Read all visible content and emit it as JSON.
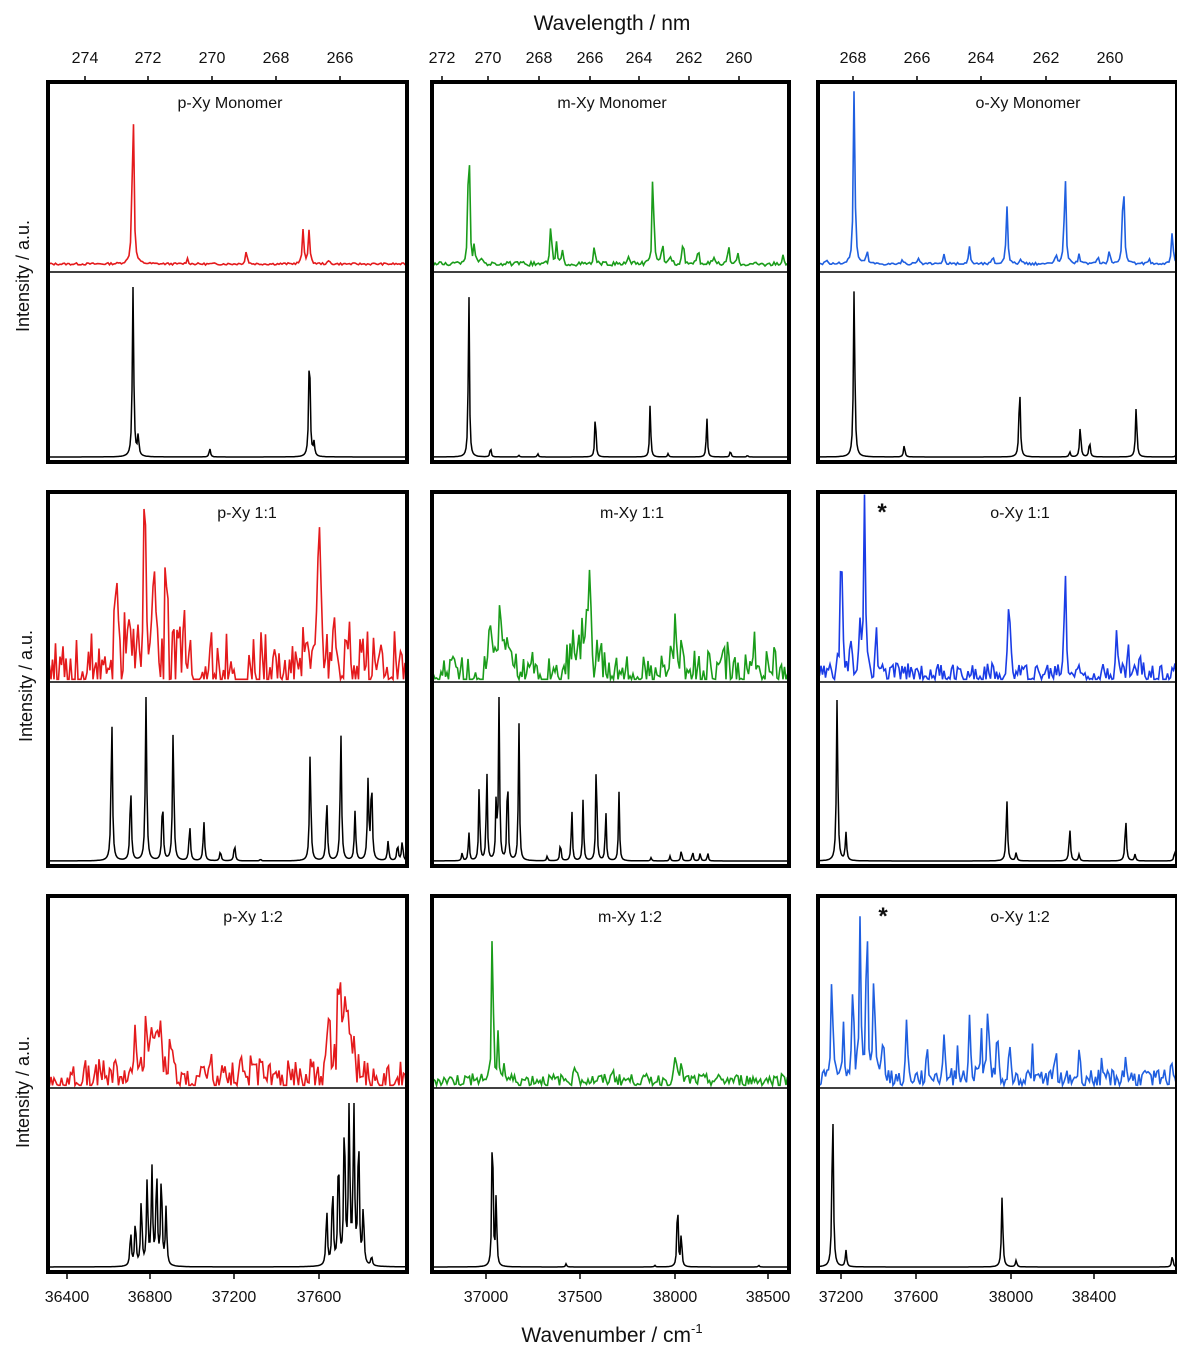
{
  "figure": {
    "top_axis_label": "Wavelength / nm",
    "bottom_axis_label_main": "Wavenumber / cm",
    "bottom_axis_label_sup": "-1",
    "y_axis_label": "Intensity / a.u.",
    "top_ticks": [
      [
        "274",
        "272",
        "270",
        "268",
        "266"
      ],
      [
        "272",
        "270",
        "268",
        "266",
        "264",
        "262",
        "260"
      ],
      [
        "268",
        "266",
        "264",
        "262",
        "260"
      ]
    ],
    "bottom_ticks": [
      [
        "36400",
        "36800",
        "37200",
        "37600"
      ],
      [
        "37000",
        "37500",
        "38000",
        "38500"
      ],
      [
        "37200",
        "37600",
        "38000",
        "38400"
      ]
    ],
    "marker": "*"
  },
  "chart_data": [
    {
      "type": "line",
      "row": 0,
      "col": 0,
      "title": "p-Xy Monomer",
      "xlim": [
        36350,
        37870
      ],
      "experiment": {
        "color": "#e41a1c",
        "peaks": [
          [
            36710,
            1.0
          ],
          [
            36940,
            0.03
          ],
          [
            37190,
            0.08
          ],
          [
            37430,
            0.19
          ],
          [
            37455,
            0.19
          ],
          [
            37540,
            0.02
          ]
        ],
        "noise": 0.006
      },
      "simulation": {
        "color": "#000000",
        "peaks": [
          [
            36710,
            1.0
          ],
          [
            36732,
            0.12
          ],
          [
            37035,
            0.05
          ],
          [
            37457,
            0.66
          ],
          [
            37476,
            0.08
          ]
        ]
      }
    },
    {
      "type": "line",
      "row": 0,
      "col": 1,
      "title": "m-Xy Monomer",
      "xlim": [
        36740,
        38630
      ],
      "experiment": {
        "color": "#1a9c1a",
        "peaks": [
          [
            36935,
            1.0
          ],
          [
            36965,
            0.12
          ],
          [
            37005,
            0.05
          ],
          [
            37370,
            0.28
          ],
          [
            37400,
            0.12
          ],
          [
            37430,
            0.08
          ],
          [
            37600,
            0.12
          ],
          [
            37780,
            0.05
          ],
          [
            37910,
            0.66
          ],
          [
            37960,
            0.15
          ],
          [
            38000,
            0.07
          ],
          [
            38070,
            0.18
          ],
          [
            38150,
            0.1
          ],
          [
            38230,
            0.06
          ],
          [
            38310,
            0.12
          ],
          [
            38360,
            0.06
          ],
          [
            38600,
            0.05
          ]
        ],
        "noise": 0.012
      },
      "simulation": {
        "color": "#000000",
        "peaks": [
          [
            36935,
            1.0
          ],
          [
            37050,
            0.06
          ],
          [
            37200,
            0.01
          ],
          [
            37300,
            0.02
          ],
          [
            37605,
            0.28
          ],
          [
            37895,
            0.32
          ],
          [
            37990,
            0.02
          ],
          [
            38195,
            0.24
          ],
          [
            38320,
            0.04
          ],
          [
            38410,
            0.01
          ]
        ]
      }
    },
    {
      "type": "line",
      "row": 0,
      "col": 2,
      "title": "o-Xy Monomer",
      "xlim": [
        37180,
        38720
      ],
      "experiment": {
        "color": "#1f5fe0",
        "peaks": [
          [
            37215,
            0.03
          ],
          [
            37335,
            1.0
          ],
          [
            37390,
            0.08
          ],
          [
            37540,
            0.02
          ],
          [
            37610,
            0.03
          ],
          [
            37720,
            0.05
          ],
          [
            37830,
            0.1
          ],
          [
            37930,
            0.04
          ],
          [
            37990,
            0.34
          ],
          [
            38050,
            0.03
          ],
          [
            38200,
            0.06
          ],
          [
            38240,
            0.56
          ],
          [
            38300,
            0.06
          ],
          [
            38380,
            0.05
          ],
          [
            38430,
            0.08
          ],
          [
            38490,
            0.56
          ],
          [
            38600,
            0.04
          ],
          [
            38700,
            0.2
          ]
        ],
        "noise": 0.007
      },
      "simulation": {
        "color": "#000000",
        "peaks": [
          [
            37335,
            1.0
          ],
          [
            37550,
            0.07
          ],
          [
            38045,
            0.42
          ],
          [
            38260,
            0.03
          ],
          [
            38305,
            0.18
          ],
          [
            38345,
            0.09
          ],
          [
            38545,
            0.3
          ],
          [
            38715,
            0.01
          ]
        ]
      }
    },
    {
      "type": "line",
      "row": 1,
      "col": 0,
      "title": "p-Xy 1:1",
      "xlim": [
        36350,
        37870
      ],
      "experiment": {
        "color": "#e41a1c",
        "peaks": [
          [
            36640,
            0.45
          ],
          [
            36700,
            0.45
          ],
          [
            36760,
            0.55
          ],
          [
            36800,
            0.55
          ],
          [
            36850,
            0.45
          ],
          [
            36920,
            0.2
          ],
          [
            37440,
            0.35
          ],
          [
            37500,
            0.42
          ],
          [
            37560,
            0.45
          ],
          [
            37620,
            0.3
          ],
          [
            37680,
            0.15
          ]
        ],
        "broad": true,
        "noise": 0.06
      },
      "simulation": {
        "color": "#000000",
        "peaks": [
          [
            36620,
            0.88
          ],
          [
            36700,
            0.46
          ],
          [
            36765,
            1.0
          ],
          [
            36835,
            0.38
          ],
          [
            36880,
            0.8
          ],
          [
            36950,
            0.22
          ],
          [
            37010,
            0.24
          ],
          [
            37080,
            0.06
          ],
          [
            37140,
            0.1
          ],
          [
            37250,
            0.01
          ],
          [
            37460,
            0.66
          ],
          [
            37530,
            0.38
          ],
          [
            37590,
            0.78
          ],
          [
            37650,
            0.3
          ],
          [
            37705,
            0.48
          ],
          [
            37720,
            0.5
          ],
          [
            37790,
            0.12
          ],
          [
            37830,
            0.1
          ],
          [
            37850,
            0.12
          ]
        ]
      }
    },
    {
      "type": "line",
      "row": 1,
      "col": 1,
      "title": "m-Xy 1:1",
      "xlim": [
        36740,
        38630
      ],
      "experiment": {
        "color": "#1a9c1a",
        "peaks": [
          [
            37050,
            0.7
          ],
          [
            37100,
            0.6
          ],
          [
            37150,
            0.35
          ],
          [
            37480,
            0.3
          ],
          [
            37530,
            0.35
          ],
          [
            37570,
            0.85
          ],
          [
            37620,
            0.15
          ],
          [
            37980,
            0.2
          ],
          [
            38020,
            0.45
          ],
          [
            38060,
            0.18
          ],
          [
            38200,
            0.12
          ],
          [
            38300,
            0.1
          ],
          [
            38450,
            0.14
          ],
          [
            38550,
            0.1
          ]
        ],
        "broad": true,
        "noise": 0.05
      },
      "simulation": {
        "color": "#000000",
        "peaks": [
          [
            36900,
            0.05
          ],
          [
            36935,
            0.18
          ],
          [
            36990,
            0.48
          ],
          [
            37030,
            0.58
          ],
          [
            37080,
            0.38
          ],
          [
            37095,
            1.0
          ],
          [
            37140,
            0.6
          ],
          [
            37200,
            0.86
          ],
          [
            37350,
            0.03
          ],
          [
            37420,
            0.12
          ],
          [
            37480,
            0.33
          ],
          [
            37540,
            0.38
          ],
          [
            37610,
            0.66
          ],
          [
            37660,
            0.32
          ],
          [
            37730,
            0.42
          ],
          [
            37900,
            0.02
          ],
          [
            38000,
            0.03
          ],
          [
            38060,
            0.07
          ],
          [
            38120,
            0.06
          ],
          [
            38160,
            0.05
          ],
          [
            38200,
            0.05
          ]
        ]
      }
    },
    {
      "type": "line",
      "row": 1,
      "col": 2,
      "title": "o-Xy 1:1",
      "xlim": [
        37180,
        38720
      ],
      "experiment": {
        "color": "#1a3ce6",
        "peaks": [
          [
            37280,
            0.75
          ],
          [
            37320,
            0.15
          ],
          [
            37360,
            0.25
          ],
          [
            37380,
            0.82
          ],
          [
            37430,
            0.25
          ],
          [
            38000,
            0.52
          ],
          [
            38240,
            0.55
          ],
          [
            38460,
            0.2
          ],
          [
            38510,
            0.12
          ],
          [
            38560,
            0.08
          ]
        ],
        "noise": 0.05
      },
      "simulation": {
        "color": "#000000",
        "peaks": [
          [
            37262,
            1.0
          ],
          [
            37300,
            0.17
          ],
          [
            37990,
            0.38
          ],
          [
            38030,
            0.05
          ],
          [
            38260,
            0.2
          ],
          [
            38300,
            0.04
          ],
          [
            38500,
            0.26
          ],
          [
            38540,
            0.04
          ],
          [
            38710,
            0.06
          ]
        ]
      }
    },
    {
      "type": "line",
      "row": 2,
      "col": 0,
      "title": "p-Xy 1:2",
      "xlim": [
        36350,
        37870
      ],
      "experiment": {
        "color": "#e41a1c",
        "peaks": [
          [
            36720,
            0.38
          ],
          [
            36760,
            0.52
          ],
          [
            36790,
            0.58
          ],
          [
            36820,
            0.5
          ],
          [
            36870,
            0.2
          ],
          [
            37540,
            0.35
          ],
          [
            37580,
            0.52
          ],
          [
            37600,
            1.0
          ],
          [
            37630,
            0.45
          ],
          [
            37680,
            0.18
          ]
        ],
        "broad": true,
        "noise": 0.06
      },
      "simulation": {
        "color": "#000000",
        "peaks": [
          [
            36700,
            0.18
          ],
          [
            36720,
            0.24
          ],
          [
            36745,
            0.35
          ],
          [
            36770,
            0.45
          ],
          [
            36790,
            0.5
          ],
          [
            36810,
            0.5
          ],
          [
            36830,
            0.48
          ],
          [
            36850,
            0.3
          ],
          [
            37530,
            0.3
          ],
          [
            37555,
            0.42
          ],
          [
            37580,
            0.6
          ],
          [
            37605,
            0.78
          ],
          [
            37625,
            0.85
          ],
          [
            37645,
            0.85
          ],
          [
            37665,
            0.7
          ],
          [
            37685,
            0.3
          ],
          [
            37720,
            0.05
          ]
        ]
      }
    },
    {
      "type": "line",
      "row": 2,
      "col": 1,
      "title": "m-Xy 1:2",
      "xlim": [
        36740,
        38630
      ],
      "experiment": {
        "color": "#1a9c1a",
        "peaks": [
          [
            37060,
            1.0
          ],
          [
            37090,
            0.28
          ],
          [
            37120,
            0.1
          ],
          [
            37500,
            0.1
          ],
          [
            37700,
            0.08
          ],
          [
            38030,
            0.25
          ],
          [
            38060,
            0.08
          ]
        ],
        "noise": 0.035
      },
      "simulation": {
        "color": "#000000",
        "peaks": [
          [
            37060,
            1.0
          ],
          [
            37080,
            0.45
          ],
          [
            37450,
            0.02
          ],
          [
            37920,
            0.01
          ],
          [
            38040,
            0.45
          ],
          [
            38060,
            0.22
          ],
          [
            38470,
            0.01
          ]
        ]
      }
    },
    {
      "type": "line",
      "row": 2,
      "col": 2,
      "title": "o-Xy 1:2",
      "xlim": [
        37180,
        38720
      ],
      "experiment": {
        "color": "#1f5fe0",
        "peaks": [
          [
            37240,
            0.55
          ],
          [
            37290,
            0.3
          ],
          [
            37330,
            0.5
          ],
          [
            37360,
            0.75
          ],
          [
            37390,
            0.9
          ],
          [
            37420,
            0.6
          ],
          [
            37460,
            0.3
          ],
          [
            37560,
            0.3
          ],
          [
            37650,
            0.2
          ],
          [
            37720,
            0.25
          ],
          [
            37780,
            0.18
          ],
          [
            37830,
            0.35
          ],
          [
            37880,
            0.28
          ],
          [
            37910,
            0.45
          ],
          [
            37950,
            0.3
          ],
          [
            38000,
            0.22
          ],
          [
            38100,
            0.15
          ],
          [
            38200,
            0.15
          ],
          [
            38300,
            0.15
          ],
          [
            38400,
            0.12
          ],
          [
            38500,
            0.12
          ],
          [
            38600,
            0.1
          ],
          [
            38700,
            0.12
          ]
        ],
        "noise": 0.05
      },
      "simulation": {
        "color": "#000000",
        "peaks": [
          [
            37243,
            1.0
          ],
          [
            37300,
            0.1
          ],
          [
            37970,
            0.44
          ],
          [
            38030,
            0.04
          ],
          [
            38700,
            0.07
          ]
        ]
      }
    }
  ]
}
